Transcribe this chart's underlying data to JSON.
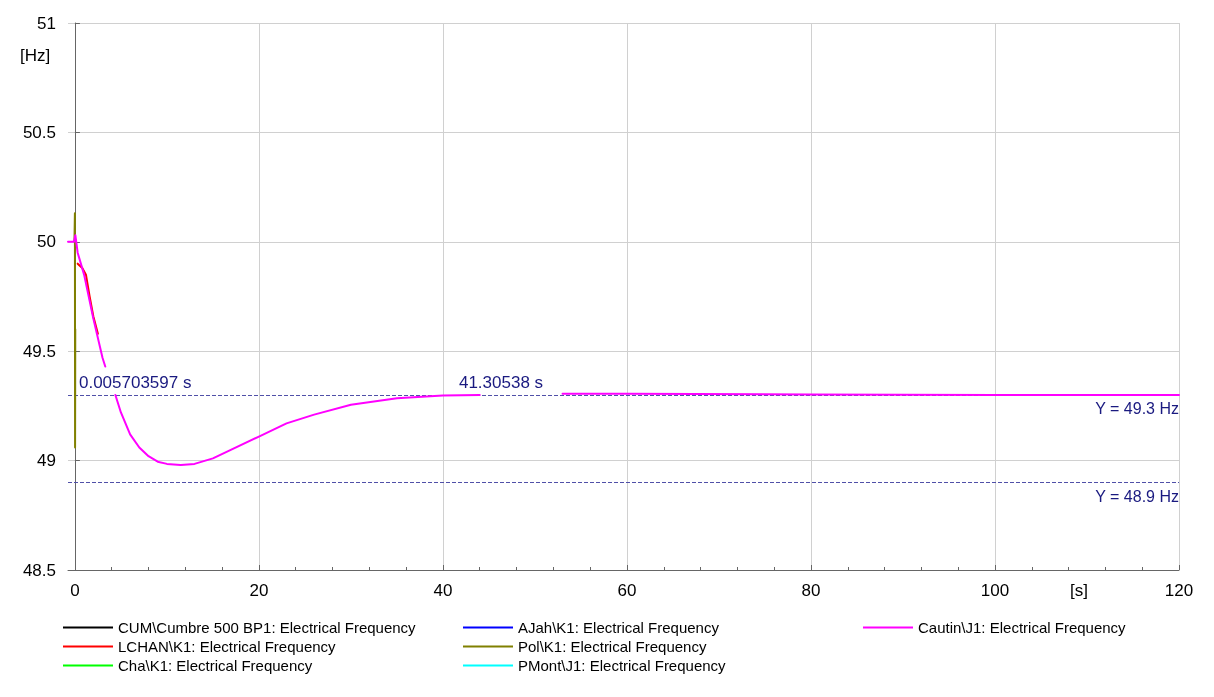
{
  "chart_data": {
    "type": "line",
    "xlabel": "[s]",
    "ylabel": "[Hz]",
    "xlim": [
      -0.75,
      120
    ],
    "xticks": [
      0,
      20,
      40,
      60,
      80,
      100,
      120
    ],
    "ylim": [
      48.5,
      51
    ],
    "yticks": [
      48.5,
      49,
      49.5,
      50,
      50.5,
      51
    ],
    "grid": true,
    "legend": "bottom",
    "marker": "none",
    "line_style": "solid",
    "series": [
      {
        "name": "CUM\\Cumbre 500 BP1: Electrical Frequency",
        "color": "#000000"
      },
      {
        "name": "LCHAN\\K1: Electrical Frequency",
        "color": "#ff0000",
        "x": [
          0.3,
          0.8,
          1.2,
          1.6,
          2,
          2.5
        ],
        "values": [
          49.9,
          49.88,
          49.85,
          49.75,
          49.66,
          49.58
        ]
      },
      {
        "name": "Cha\\K1: Electrical Frequency",
        "color": "#00ff00"
      },
      {
        "name": "AJah\\K1: Electrical Frequency",
        "color": "#0000ff"
      },
      {
        "name": "Pol\\K1: Electrical Frequency",
        "color": "#808000",
        "x": [
          -0.05,
          0,
          0.02,
          0.04
        ],
        "values": [
          50,
          50.13,
          49.06,
          49.6
        ]
      },
      {
        "name": "PMont\\J1: Electrical Frequency",
        "color": "#00ffff"
      },
      {
        "name": "Cautin\\J1: Electrical Frequency",
        "color": "#ff00ff",
        "x": [
          -0.75,
          -0.1,
          0,
          0.05,
          0.3,
          1,
          2,
          3,
          3.3,
          3.8,
          4.4,
          5,
          6,
          7,
          8,
          9,
          10,
          11.5,
          13,
          15,
          17,
          20,
          23,
          26,
          30,
          35,
          40,
          44,
          48,
          53,
          60,
          80,
          100,
          120
        ],
        "values": [
          50,
          50,
          50.02,
          50.03,
          49.95,
          49.85,
          49.65,
          49.47,
          49.43,
          null,
          49.3,
          49.22,
          49.12,
          49.06,
          49.02,
          48.995,
          48.985,
          48.98,
          48.985,
          49.01,
          49.05,
          49.11,
          49.17,
          49.21,
          49.255,
          49.285,
          49.298,
          49.3,
          null,
          49.305,
          49.305,
          49.302,
          49.3,
          49.3
        ]
      }
    ],
    "ref_lines": [
      {
        "axis": "y",
        "value": 49.3,
        "label": "Y = 49.3 Hz",
        "color": "#5050a8",
        "line_style": "dashed"
      },
      {
        "axis": "y",
        "value": 48.9,
        "label": "Y = 48.9 Hz",
        "color": "#5050a8",
        "line_style": "dashed"
      }
    ],
    "annotations": [
      {
        "text": "0.005703597 s",
        "x": 0.005703597,
        "y": 49.3
      },
      {
        "text": "41.30538 s",
        "x": 41.30538,
        "y": 49.3
      }
    ]
  }
}
